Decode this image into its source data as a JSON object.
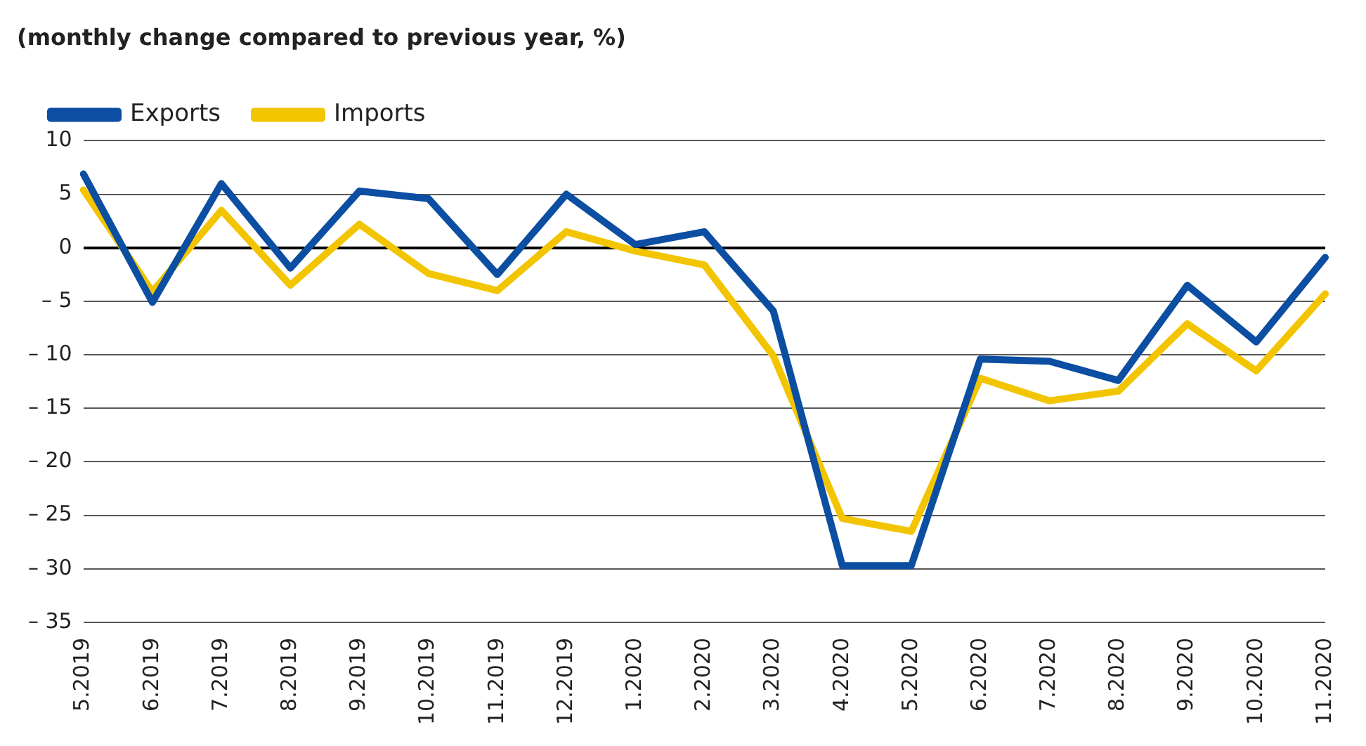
{
  "chart_data": {
    "type": "line",
    "title": "(monthly change compared to previous year, %)",
    "categories": [
      "5.2019",
      "6.2019",
      "7.2019",
      "8.2019",
      "9.2019",
      "10.2019",
      "11.2019",
      "12.2019",
      "1.2020",
      "2.2020",
      "3.2020",
      "4.2020",
      "5.2020",
      "6.2020",
      "7.2020",
      "8.2020",
      "9.2020",
      "10.2020",
      "11.2020"
    ],
    "series": [
      {
        "name": "Exports",
        "color": "#0b4ea2",
        "values": [
          6.9,
          -5.1,
          6.0,
          -1.9,
          5.3,
          4.6,
          -2.5,
          5.0,
          0.3,
          1.5,
          -5.9,
          -29.7,
          -29.7,
          -10.4,
          -10.6,
          -12.4,
          -3.5,
          -8.8,
          -0.9
        ]
      },
      {
        "name": "Imports",
        "color": "#f2c500",
        "values": [
          5.4,
          -4.1,
          3.5,
          -3.5,
          2.2,
          -2.4,
          -4.0,
          1.5,
          -0.3,
          -1.6,
          -10.1,
          -25.3,
          -26.5,
          -12.2,
          -14.3,
          -13.4,
          -7.1,
          -11.5,
          -4.3
        ]
      }
    ],
    "ylim": [
      -35,
      10
    ],
    "yticks": [
      {
        "value": -35,
        "label": "– 35"
      },
      {
        "value": -30,
        "label": "– 30"
      },
      {
        "value": -25,
        "label": "– 25"
      },
      {
        "value": -20,
        "label": "– 20"
      },
      {
        "value": -15,
        "label": "– 15"
      },
      {
        "value": -10,
        "label": "– 10"
      },
      {
        "value": -5,
        "label": "– 5"
      },
      0,
      5,
      10
    ],
    "grid": "y",
    "legend": "top left",
    "marker": "none",
    "line_style": "solid"
  }
}
